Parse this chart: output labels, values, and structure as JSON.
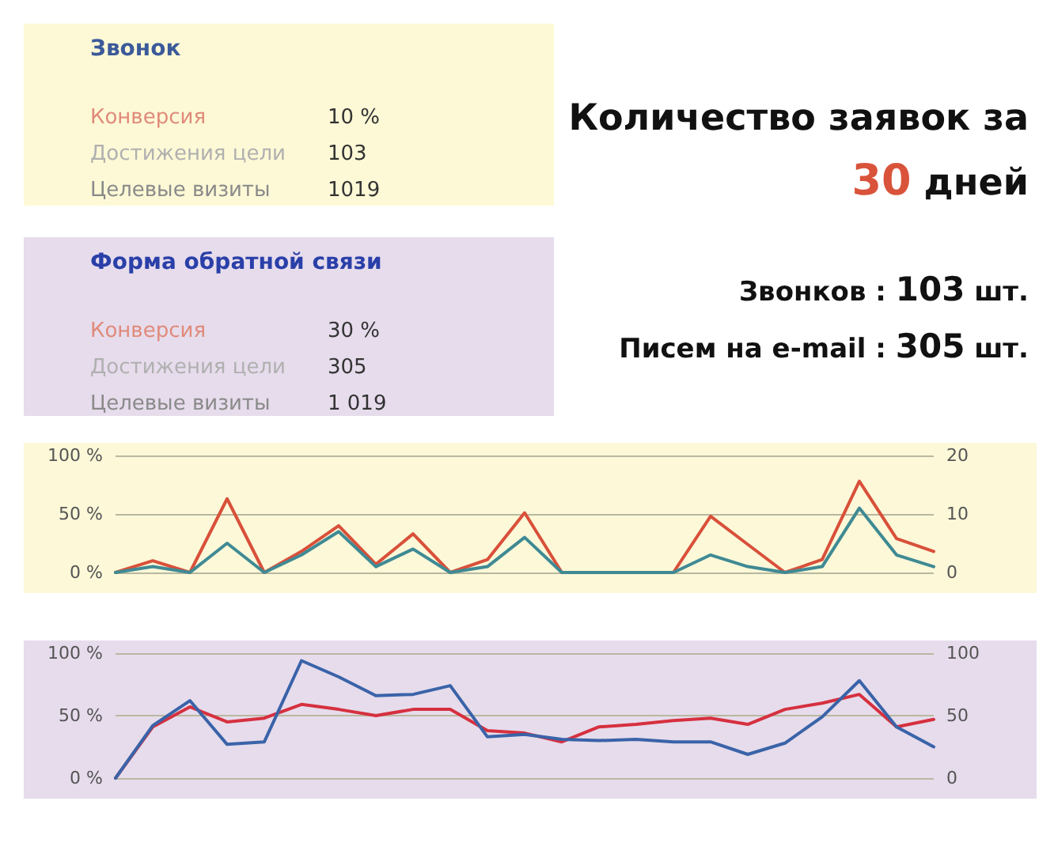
{
  "chart_data": [
    {
      "type": "other",
      "title": "Звонок",
      "annotations": [
        "Конверсия",
        "10 %",
        "Достижения цели",
        "103",
        "Целевые визиты",
        "1019"
      ]
    },
    {
      "type": "other",
      "title": "Форма обратной связи",
      "annotations": [
        "Конверсия",
        "30 %",
        "Достижения цели",
        "305",
        "Целевые визиты",
        "1 019"
      ]
    },
    {
      "type": "other",
      "title": "Количество заявок за 30 дней",
      "annotations": [
        "Звонков : 103 шт.",
        "Писем на e-mail : 305 шт."
      ]
    },
    {
      "type": "line",
      "categories": [
        null,
        null,
        null,
        null,
        null,
        null,
        null,
        null,
        null,
        null,
        null,
        null,
        null,
        null,
        null,
        null,
        null,
        null,
        null,
        null,
        null,
        null,
        null
      ],
      "series": [
        {
          "color": "#d9503a",
          "values": [
            0,
            10,
            0,
            63,
            0,
            18,
            40,
            7,
            33,
            0,
            11,
            51,
            0,
            0,
            0,
            0,
            48,
            24,
            0,
            11,
            78,
            29,
            18
          ]
        },
        {
          "color": "#3f8a94",
          "axis": "y2",
          "values": [
            0,
            1,
            0,
            5,
            0,
            3,
            7,
            1,
            4,
            0,
            1,
            6,
            0,
            0,
            0,
            0,
            3,
            1,
            0,
            1,
            11,
            3,
            1
          ]
        }
      ],
      "ylim": [
        0,
        100
      ],
      "yticks": [
        {
          "value": 0,
          "label": "0 %"
        },
        {
          "value": 50,
          "label": "50 %"
        },
        {
          "value": 100,
          "label": "100 %"
        }
      ],
      "y2lim": [
        0,
        20
      ],
      "y2ticks": [
        0,
        10,
        20
      ],
      "grid": "y",
      "marker": "none",
      "line_style": "solid"
    },
    {
      "type": "line",
      "categories": [
        null,
        null,
        null,
        null,
        null,
        null,
        null,
        null,
        null,
        null,
        null,
        null,
        null,
        null,
        null,
        null,
        null,
        null,
        null,
        null,
        null,
        null,
        null
      ],
      "series": [
        {
          "color": "#d6303f",
          "values": [
            0,
            41,
            57,
            45,
            48,
            59,
            55,
            50,
            55,
            55,
            38,
            36,
            29,
            41,
            43,
            46,
            48,
            43,
            55,
            60,
            67,
            41,
            47
          ]
        },
        {
          "color": "#3a63a8",
          "axis": "y2",
          "values": [
            0,
            42,
            62,
            27,
            29,
            94,
            81,
            66,
            67,
            74,
            33,
            35,
            31,
            30,
            31,
            29,
            29,
            19,
            28,
            49,
            78,
            41,
            25
          ]
        }
      ],
      "ylim": [
        0,
        100
      ],
      "yticks": [
        {
          "value": 0,
          "label": "0 %"
        },
        {
          "value": 50,
          "label": "50 %"
        },
        {
          "value": 100,
          "label": "100 %"
        }
      ],
      "y2lim": [
        0,
        100
      ],
      "y2ticks": [
        0,
        50,
        100
      ],
      "grid": "y",
      "marker": "none",
      "line_style": "solid"
    }
  ]
}
